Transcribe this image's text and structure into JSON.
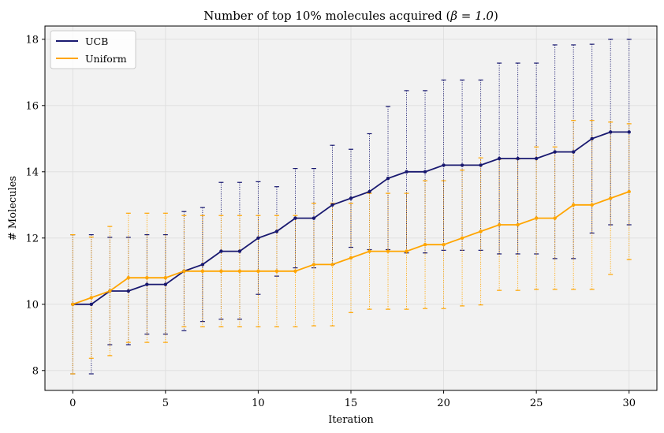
{
  "chart_data": {
    "type": "line",
    "title": "Number of top 10% molecules acquired (",
    "title_math": "β = 1.0",
    "title_end": ")",
    "xlabel": "Iteration",
    "ylabel": "# Molecules",
    "xlim": [
      -1.5,
      31.5
    ],
    "ylim": [
      7.4,
      18.4
    ],
    "xticks": [
      0,
      5,
      10,
      15,
      20,
      25,
      30
    ],
    "yticks": [
      8,
      10,
      12,
      14,
      16,
      18
    ],
    "grid": true,
    "legend_position": "top-left",
    "x": [
      0,
      1,
      2,
      3,
      4,
      5,
      6,
      7,
      8,
      9,
      10,
      11,
      12,
      13,
      14,
      15,
      16,
      17,
      18,
      19,
      20,
      21,
      22,
      23,
      24,
      25,
      26,
      27,
      28,
      29,
      30
    ],
    "series": [
      {
        "name": "UCB",
        "color": "#191970",
        "values": [
          10.0,
          10.0,
          10.4,
          10.4,
          10.6,
          10.6,
          11.0,
          11.2,
          11.6,
          11.6,
          12.0,
          12.2,
          12.6,
          12.6,
          13.0,
          13.2,
          13.4,
          13.8,
          14.0,
          14.0,
          14.2,
          14.2,
          14.2,
          14.4,
          14.4,
          14.4,
          14.6,
          14.6,
          15.0,
          15.2,
          15.2
        ],
        "upper": [
          12.1,
          12.1,
          12.02,
          12.02,
          12.1,
          12.1,
          12.8,
          12.92,
          13.68,
          13.68,
          13.7,
          13.55,
          14.1,
          14.1,
          14.8,
          14.68,
          15.15,
          15.97,
          16.45,
          16.45,
          16.77,
          16.77,
          16.77,
          17.28,
          17.28,
          17.28,
          17.83,
          17.83,
          17.85,
          18.0,
          18.0
        ],
        "lower": [
          7.9,
          7.9,
          8.78,
          8.78,
          9.1,
          9.1,
          9.2,
          9.48,
          9.55,
          9.55,
          10.3,
          10.85,
          11.1,
          11.1,
          11.2,
          11.72,
          11.65,
          11.65,
          11.55,
          11.55,
          11.63,
          11.63,
          11.63,
          11.52,
          11.52,
          11.52,
          11.38,
          11.38,
          12.15,
          12.4,
          12.4
        ]
      },
      {
        "name": "Uniform",
        "color": "#ffa500",
        "values": [
          10.0,
          10.2,
          10.4,
          10.8,
          10.8,
          10.8,
          11.0,
          11.0,
          11.0,
          11.0,
          11.0,
          11.0,
          11.0,
          11.2,
          11.2,
          11.4,
          11.6,
          11.6,
          11.6,
          11.8,
          11.8,
          12.0,
          12.2,
          12.4,
          12.4,
          12.6,
          12.6,
          13.0,
          13.0,
          13.2,
          13.4
        ],
        "upper": [
          12.1,
          12.03,
          12.35,
          12.75,
          12.75,
          12.75,
          12.68,
          12.68,
          12.68,
          12.68,
          12.68,
          12.68,
          12.68,
          13.05,
          13.05,
          13.05,
          13.35,
          13.35,
          13.35,
          13.73,
          13.73,
          14.05,
          14.42,
          14.38,
          14.38,
          14.75,
          14.75,
          15.55,
          15.55,
          15.5,
          15.45
        ],
        "lower": [
          7.9,
          8.37,
          8.45,
          8.85,
          8.85,
          8.85,
          9.32,
          9.32,
          9.32,
          9.32,
          9.32,
          9.32,
          9.32,
          9.35,
          9.35,
          9.75,
          9.85,
          9.85,
          9.85,
          9.87,
          9.87,
          9.95,
          9.98,
          10.42,
          10.42,
          10.45,
          10.45,
          10.45,
          10.45,
          10.9,
          11.35
        ]
      }
    ]
  }
}
